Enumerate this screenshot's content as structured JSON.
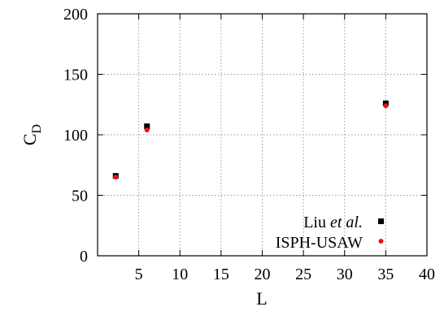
{
  "chart_data": {
    "type": "scatter",
    "xlabel": "L",
    "ylabel_main": "C",
    "ylabel_sub": "D",
    "xlim": [
      0,
      40
    ],
    "ylim": [
      0,
      200
    ],
    "x_ticks": [
      "5",
      "10",
      "15",
      "20",
      "25",
      "30",
      "35",
      "40"
    ],
    "y_ticks": [
      "0",
      "50",
      "100",
      "150",
      "200"
    ],
    "grid": true,
    "legend_position": "bottom-right",
    "series": [
      {
        "name_main": "Liu ",
        "name_italic": "et al.",
        "marker": "square",
        "color": "#000000",
        "x": [
          2.2,
          6.0,
          35.0
        ],
        "y": [
          66,
          107,
          126
        ]
      },
      {
        "name_main": "ISPH-USAW",
        "name_italic": "",
        "marker": "circle",
        "color": "#ee1111",
        "x": [
          2.2,
          6.0,
          35.0
        ],
        "y": [
          65,
          104,
          124
        ]
      }
    ]
  }
}
